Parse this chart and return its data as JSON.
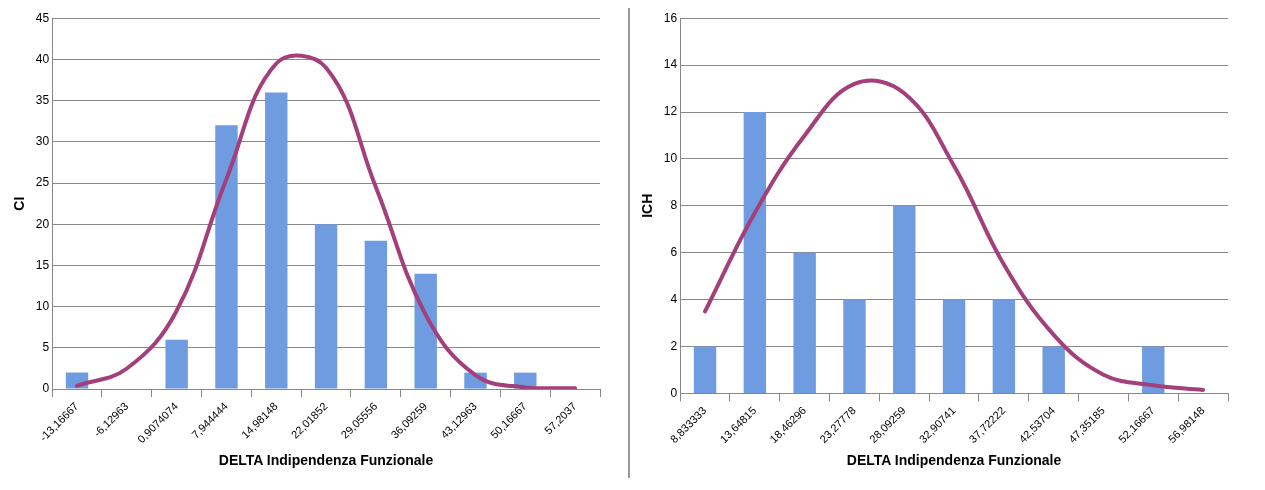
{
  "chart_data": [
    {
      "type": "bar",
      "xlabel": "DELTA Indipendenza Funzionale",
      "ylabel": "CI",
      "grid": "y",
      "categories": [
        "-13,16667",
        "-6,12963",
        "0,9074074",
        "7,944444",
        "14,98148",
        "22,01852",
        "29,05556",
        "36,09259",
        "43,12963",
        "50,16667",
        "57,2037"
      ],
      "ylim": [
        0,
        45
      ],
      "yticks": [
        0,
        5,
        10,
        15,
        20,
        25,
        30,
        35,
        40,
        45
      ],
      "series": [
        {
          "color": "#6f9be0",
          "values": [
            2,
            0,
            6,
            32,
            36,
            20,
            18,
            14,
            2,
            2,
            0
          ]
        },
        {
          "type": "line",
          "color": "#a3407c",
          "values": [
            0.4,
            2.5,
            9.5,
            25.5,
            39.5,
            39,
            24.5,
            9,
            1.7,
            0.2,
            0.1
          ]
        }
      ]
    },
    {
      "type": "bar",
      "xlabel": "DELTA Indipendenza Funzionale",
      "ylabel": "ICH",
      "grid": "y",
      "categories": [
        "8,833333",
        "13,64815",
        "18,46296",
        "23,27778",
        "28,09259",
        "32,90741",
        "37,72222",
        "42,53704",
        "47,35185",
        "52,16667",
        "56,98148"
      ],
      "ylim": [
        0,
        16
      ],
      "yticks": [
        0,
        2,
        4,
        6,
        8,
        10,
        12,
        14,
        16
      ],
      "series": [
        {
          "color": "#6f9be0",
          "values": [
            2,
            12,
            6,
            4,
            8,
            4,
            4,
            2,
            0,
            2,
            0
          ]
        },
        {
          "type": "line",
          "color": "#a3407c",
          "values": [
            3.5,
            7.7,
            11,
            13.2,
            12.8,
            9.7,
            5.5,
            2.5,
            0.8,
            0.35,
            0.15
          ]
        }
      ]
    }
  ]
}
